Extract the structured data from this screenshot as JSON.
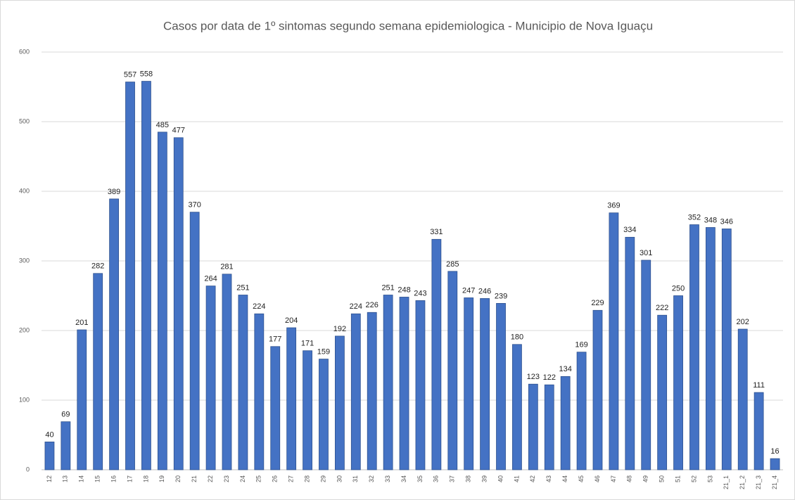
{
  "chart_data": {
    "type": "bar",
    "title": "Casos por data de 1º sintomas segundo semana epidemiologica  - Municipio de Nova Iguaçu",
    "categories": [
      "12",
      "13",
      "14",
      "15",
      "16",
      "17",
      "18",
      "19",
      "20",
      "21",
      "22",
      "23",
      "24",
      "25",
      "26",
      "27",
      "28",
      "29",
      "30",
      "31",
      "32",
      "33",
      "34",
      "35",
      "36",
      "37",
      "38",
      "39",
      "40",
      "41",
      "42",
      "43",
      "44",
      "45",
      "46",
      "47",
      "48",
      "49",
      "50",
      "51",
      "52",
      "53",
      "21_1",
      "21_2",
      "21_3",
      "21_4"
    ],
    "values": [
      40,
      69,
      201,
      282,
      389,
      557,
      558,
      485,
      477,
      370,
      264,
      281,
      251,
      224,
      177,
      204,
      171,
      159,
      192,
      224,
      226,
      251,
      248,
      243,
      331,
      285,
      247,
      246,
      239,
      180,
      123,
      122,
      134,
      169,
      229,
      369,
      334,
      301,
      222,
      250,
      352,
      348,
      346,
      202,
      111,
      16
    ],
    "color": "#4472c4",
    "ylim": [
      0,
      600
    ],
    "yticks": [
      0,
      100,
      200,
      300,
      400,
      500,
      600
    ],
    "grid": true
  }
}
